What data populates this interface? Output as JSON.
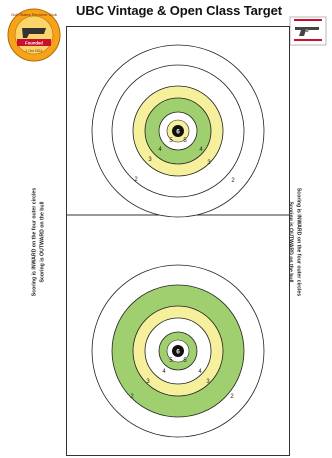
{
  "title": "UBC Vintage & Open Class Target",
  "side_text": {
    "line1": "Scoring is INWARD on the four outer circles",
    "line2": "Scoring is OUTWARD on the bull"
  },
  "logo_left": {
    "icon": "club-emblem-icon",
    "text_top": "Gulf States Revolver Club",
    "text_badge": "Founded",
    "text_bottom": "1 Oct 2011"
  },
  "logo_right": {
    "icon": "revolver-logo-icon"
  },
  "colors": {
    "ring_green": "#9fcf6e",
    "ring_yellow": "#f6ef9c",
    "bull": "#111111",
    "logo_orange": "#f7a21b",
    "logo_red": "#c8102e"
  },
  "targets": [
    {
      "scores": {
        "bull": "6",
        "ring5a": "5",
        "ring5b": "5",
        "ring4a": "4",
        "ring4b": "4",
        "ring3a": "3",
        "ring3b": "3",
        "ring2a": "2",
        "ring2b": "2"
      }
    },
    {
      "scores": {
        "bull": "6",
        "ring5a": "5",
        "ring5b": "5",
        "ring4a": "4",
        "ring4b": "4",
        "ring3a": "3",
        "ring3b": "3",
        "ring2a": "2",
        "ring2b": "2"
      }
    }
  ]
}
